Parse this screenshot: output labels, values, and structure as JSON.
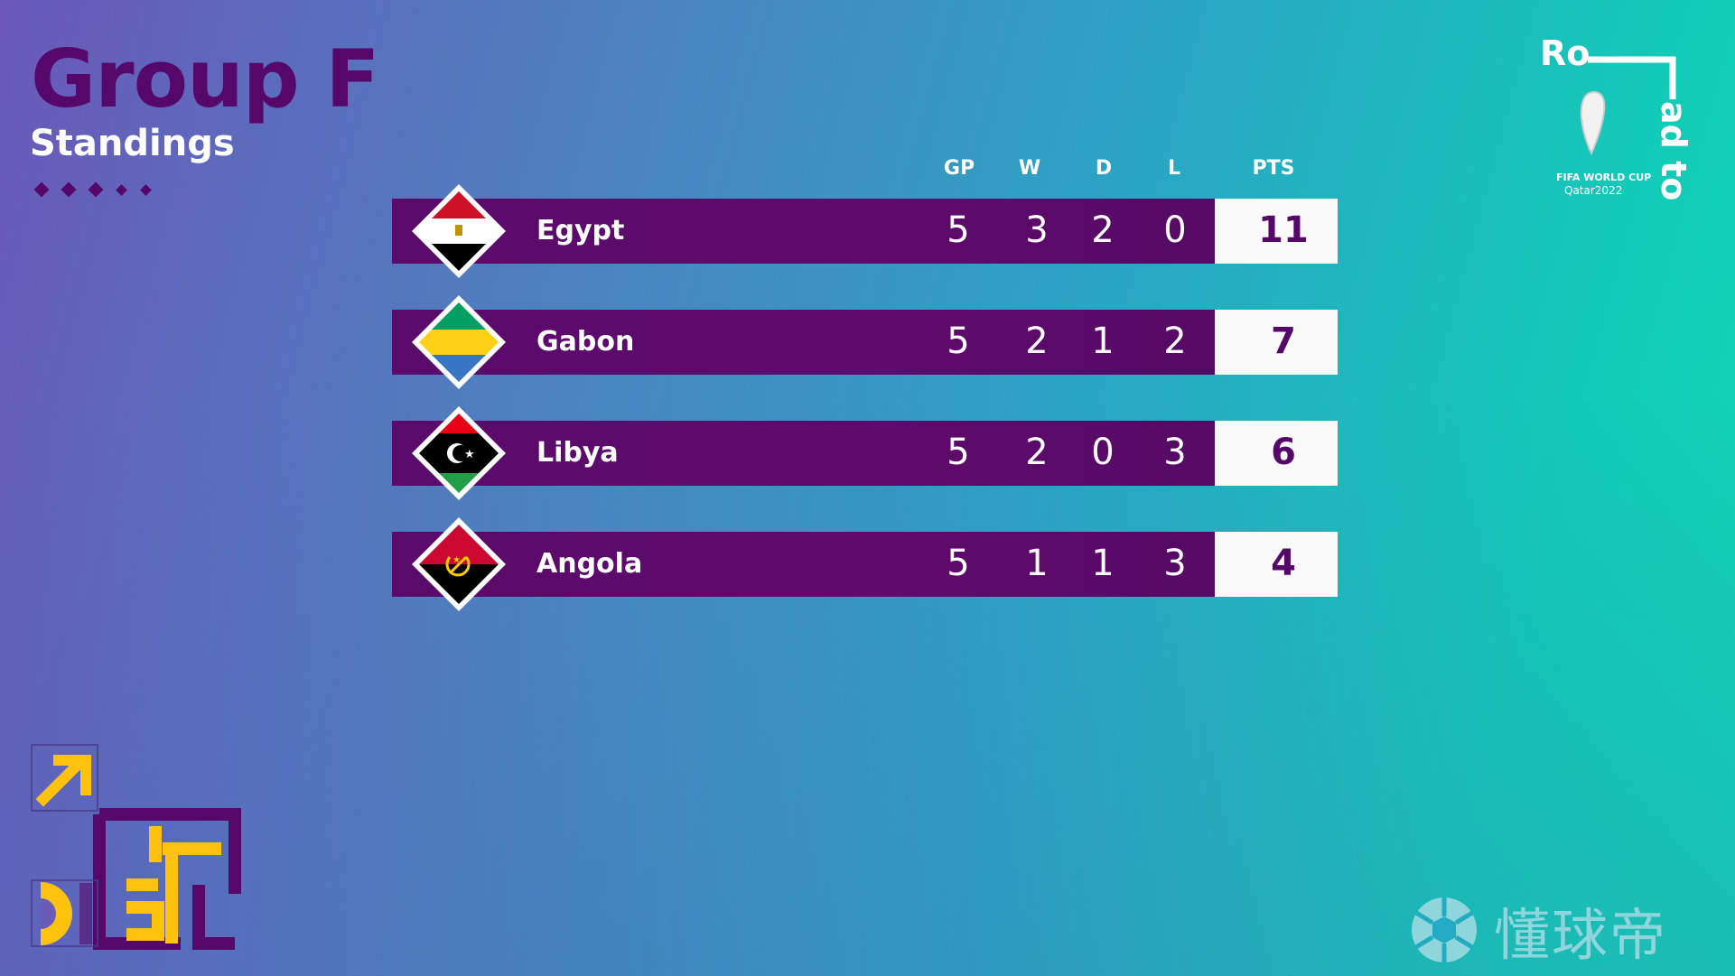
{
  "header": {
    "title": "Group F",
    "subtitle": "Standings"
  },
  "columns": {
    "gp": "GP",
    "w": "W",
    "d": "D",
    "l": "L",
    "pts": "PTS"
  },
  "teams": [
    {
      "name": "Egypt",
      "gp": "5",
      "w": "3",
      "d": "2",
      "l": "0",
      "pts": "11",
      "flag": "egypt-flag"
    },
    {
      "name": "Gabon",
      "gp": "5",
      "w": "2",
      "d": "1",
      "l": "2",
      "pts": "7",
      "flag": "gabon-flag"
    },
    {
      "name": "Libya",
      "gp": "5",
      "w": "2",
      "d": "0",
      "l": "3",
      "pts": "6",
      "flag": "libya-flag"
    },
    {
      "name": "Angola",
      "gp": "5",
      "w": "1",
      "d": "1",
      "l": "3",
      "pts": "4",
      "flag": "angola-flag"
    }
  ],
  "logo": {
    "road_text": "Road to",
    "line1": "FIFA WORLD CUP",
    "line2": "Qatar2022"
  },
  "watermark": {
    "text": "懂球帝"
  },
  "colors": {
    "primary_purple": "#55086a",
    "accent_yellow": "#ffc20e",
    "bg_left": "#6a58b9",
    "bg_right": "#0fd6b6"
  }
}
